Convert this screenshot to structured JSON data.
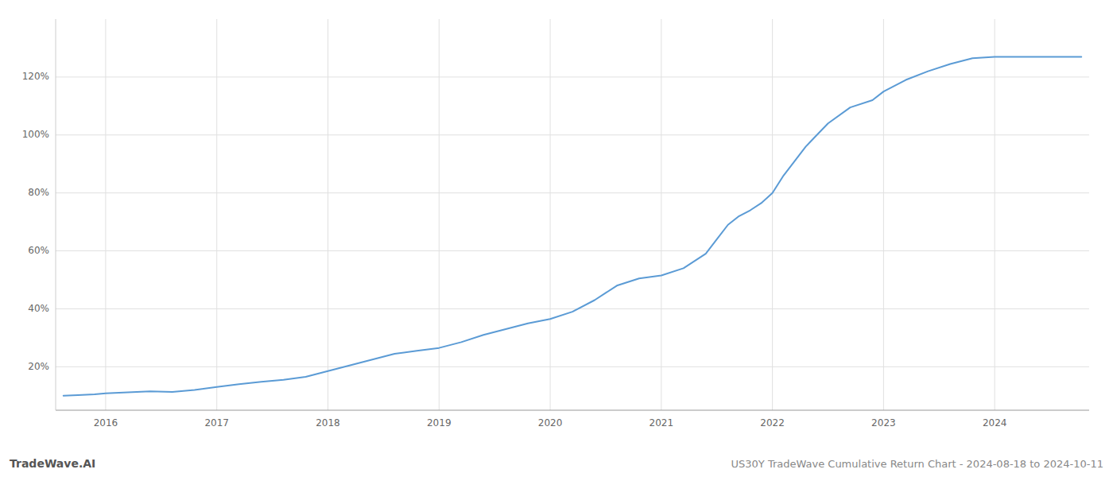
{
  "chart_data": {
    "type": "line",
    "title": "US30Y TradeWave Cumulative Return Chart - 2024-08-18 to 2024-10-11",
    "annotations": [
      "TradeWave.AI"
    ],
    "color": "#5b9bd5",
    "grid": true,
    "x": [
      2015.62,
      2015.75,
      2015.9,
      2016.0,
      2016.2,
      2016.4,
      2016.6,
      2016.8,
      2017.0,
      2017.2,
      2017.4,
      2017.6,
      2017.8,
      2018.0,
      2018.2,
      2018.4,
      2018.6,
      2018.8,
      2019.0,
      2019.2,
      2019.4,
      2019.6,
      2019.8,
      2020.0,
      2020.2,
      2020.4,
      2020.6,
      2020.8,
      2021.0,
      2021.2,
      2021.4,
      2021.5,
      2021.6,
      2021.7,
      2021.8,
      2021.9,
      2022.0,
      2022.1,
      2022.2,
      2022.3,
      2022.5,
      2022.7,
      2022.9,
      2023.0,
      2023.2,
      2023.4,
      2023.6,
      2023.8,
      2024.0,
      2024.2,
      2024.4,
      2024.6,
      2024.78
    ],
    "values": [
      10.0,
      10.2,
      10.5,
      10.8,
      11.2,
      11.5,
      11.3,
      12.0,
      13.0,
      14.0,
      14.8,
      15.5,
      16.5,
      18.5,
      20.5,
      22.5,
      24.5,
      25.5,
      26.5,
      28.5,
      31.0,
      33.0,
      35.0,
      36.5,
      39.0,
      43.0,
      48.0,
      50.5,
      51.5,
      54.0,
      59.0,
      64.0,
      69.0,
      72.0,
      74.0,
      76.5,
      80.0,
      86.0,
      91.0,
      96.0,
      104.0,
      109.5,
      112.0,
      115.0,
      119.0,
      122.0,
      124.5,
      126.5,
      127.0,
      127.0,
      127.0,
      127.0,
      127.0
    ],
    "xlim": [
      2015.55,
      2024.85
    ],
    "xticks": [
      2016,
      2017,
      2018,
      2019,
      2020,
      2021,
      2022,
      2023,
      2024
    ],
    "ylim": [
      5,
      140
    ],
    "yticks": [
      {
        "value": 20,
        "label": "20%"
      },
      {
        "value": 40,
        "label": "40%"
      },
      {
        "value": 60,
        "label": "60%"
      },
      {
        "value": 80,
        "label": "80%"
      },
      {
        "value": 100,
        "label": "100%"
      },
      {
        "value": 120,
        "label": "120%"
      }
    ]
  }
}
